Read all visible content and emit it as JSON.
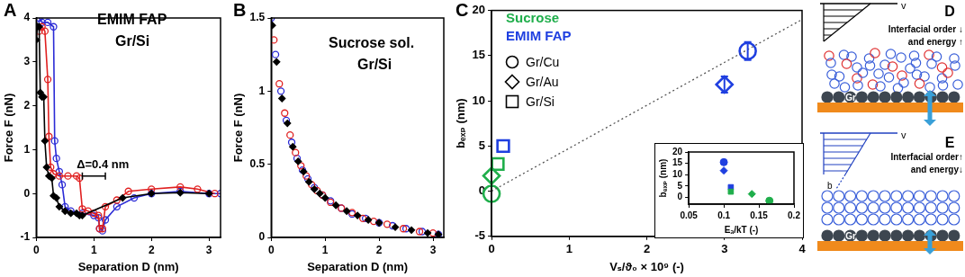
{
  "chart_data": [
    {
      "panel": "A",
      "type": "line",
      "labels": [
        "EMIM FAP",
        "Gr/Si"
      ],
      "annotations": [
        {
          "text": "Δ=0.4 nm",
          "x": [
            0.8,
            1.2
          ],
          "y": 0.4
        }
      ],
      "xlabel": "Separation D (nm)",
      "ylabel": "Force F (nN)",
      "xlim": [
        0,
        3.2
      ],
      "xticks": [
        0,
        1,
        2,
        3
      ],
      "ylim": [
        -1,
        4
      ],
      "yticks": [
        -1,
        0,
        1,
        2,
        3,
        4
      ],
      "grid": false,
      "series": [
        {
          "color": "#000000",
          "marker": "diamond",
          "line_style": "solid",
          "x": [
            0,
            0.02,
            0.05,
            0.07,
            0.1,
            0.13,
            0.15,
            0.18,
            0.22,
            0.27,
            0.3,
            0.35,
            0.4,
            0.5,
            0.6,
            0.7,
            0.75,
            0.8,
            1.5,
            2.0,
            2.5,
            3.0
          ],
          "values": [
            3.5,
            3.8,
            3.8,
            2.3,
            2.2,
            2.2,
            1.2,
            0.6,
            0.4,
            0.35,
            -0.05,
            -0.1,
            -0.3,
            -0.4,
            -0.45,
            -0.45,
            -0.5,
            -0.5,
            -0.1,
            0.0,
            0.02,
            0.0
          ]
        },
        {
          "color": "#e02020",
          "marker": "circle",
          "line_style": "solid",
          "x": [
            0.05,
            0.1,
            0.15,
            0.2,
            0.22,
            0.25,
            0.3,
            0.4,
            0.55,
            0.7,
            0.75,
            0.8,
            0.9,
            1.0,
            1.08,
            1.1,
            1.15,
            1.2,
            1.4,
            1.6,
            2.0,
            2.5,
            2.8,
            3.1
          ],
          "values": [
            3.7,
            3.8,
            3.7,
            2.6,
            1.3,
            0.6,
            0.45,
            0.4,
            0.4,
            0.4,
            0.35,
            -0.35,
            -0.4,
            -0.45,
            -0.5,
            -0.8,
            -0.8,
            -0.3,
            -0.15,
            0.05,
            0.1,
            0.15,
            0.1,
            0.0
          ]
        },
        {
          "color": "#2b2bd6",
          "marker": "circle",
          "line_style": "solid",
          "x": [
            0.05,
            0.1,
            0.2,
            0.3,
            0.32,
            0.35,
            0.4,
            0.45,
            0.5,
            0.6,
            0.8,
            1.0,
            1.08,
            1.1,
            1.15,
            1.2,
            1.4,
            1.7,
            2.0,
            2.5,
            3.0,
            3.2
          ],
          "values": [
            4.0,
            3.9,
            3.9,
            3.8,
            1.2,
            0.8,
            0.5,
            0.2,
            -0.3,
            -0.4,
            -0.45,
            -0.5,
            -0.55,
            -0.8,
            -0.85,
            -0.6,
            -0.3,
            -0.1,
            0.0,
            0.05,
            0.0,
            0.0
          ]
        }
      ]
    },
    {
      "panel": "B",
      "type": "scatter",
      "labels": [
        "Sucrose sol.",
        "Gr/Si"
      ],
      "xlabel": "Separation D (nm)",
      "ylabel": "Force F (nN)",
      "xlim": [
        0,
        3.2
      ],
      "xticks": [
        0,
        1,
        2,
        3
      ],
      "ylim": [
        0,
        1.5
      ],
      "yticks": [
        0,
        0.5,
        1,
        1.5
      ],
      "grid": false,
      "series": [
        {
          "color": "#000000",
          "marker": "diamond",
          "x": [
            0.02,
            0.1,
            0.2,
            0.3,
            0.4,
            0.5,
            0.6,
            0.7,
            0.8,
            0.9,
            1.0,
            1.2,
            1.4,
            1.6,
            1.8,
            2.0,
            2.3,
            2.6,
            2.9,
            3.1
          ],
          "values": [
            1.45,
            1.2,
            0.95,
            0.78,
            0.62,
            0.52,
            0.45,
            0.38,
            0.33,
            0.3,
            0.27,
            0.22,
            0.18,
            0.15,
            0.12,
            0.1,
            0.07,
            0.05,
            0.03,
            0.02
          ]
        },
        {
          "color": "#e02020",
          "marker": "circle",
          "x": [
            0.05,
            0.15,
            0.25,
            0.35,
            0.45,
            0.55,
            0.65,
            0.75,
            0.85,
            0.95,
            1.1,
            1.3,
            1.5,
            1.7,
            1.9,
            2.15,
            2.45,
            2.75,
            3.0
          ],
          "values": [
            1.35,
            1.05,
            0.85,
            0.7,
            0.58,
            0.49,
            0.42,
            0.36,
            0.32,
            0.29,
            0.24,
            0.2,
            0.17,
            0.13,
            0.11,
            0.09,
            0.06,
            0.04,
            0.03
          ]
        },
        {
          "color": "#2b2bd6",
          "marker": "circle",
          "x": [
            0.0,
            0.08,
            0.18,
            0.28,
            0.38,
            0.48,
            0.58,
            0.68,
            0.8,
            0.95,
            1.1,
            1.3,
            1.5,
            1.75,
            2.0,
            2.25,
            2.5,
            2.8,
            3.1
          ],
          "values": [
            1.5,
            1.25,
            1.0,
            0.8,
            0.65,
            0.54,
            0.46,
            0.4,
            0.34,
            0.29,
            0.25,
            0.2,
            0.16,
            0.13,
            0.1,
            0.08,
            0.06,
            0.04,
            0.02
          ]
        }
      ]
    },
    {
      "panel": "C",
      "type": "scatter",
      "xlabel": "Vₛ/ϑ₀ × 10⁹ (-)",
      "ylabel": "bₑₓₚ (nm)",
      "xlim": [
        0,
        4
      ],
      "xticks": [
        0,
        1,
        2,
        3,
        4
      ],
      "ylim": [
        -5,
        20
      ],
      "yticks": [
        -5,
        0,
        5,
        10,
        15,
        20
      ],
      "grid": false,
      "substrate_legend": [
        {
          "name": "Gr/Cu",
          "marker": "circle"
        },
        {
          "name": "Gr/Au",
          "marker": "diamond"
        },
        {
          "name": "Gr/Si",
          "marker": "square"
        }
      ],
      "fit_line": {
        "x": [
          0,
          4
        ],
        "values": [
          0,
          19
        ],
        "line_style": "dotted"
      },
      "series": [
        {
          "name": "Sucrose",
          "color": "#1fae4b",
          "marker": "open",
          "x": [
            0,
            0,
            0.08
          ],
          "values": [
            -0.3,
            1.7,
            3.0
          ],
          "substrates": [
            "Gr/Cu",
            "Gr/Au",
            "Gr/Si"
          ]
        },
        {
          "name": "EMIM FAP",
          "color": "#1f3fe0",
          "marker": "open",
          "x": [
            3.3,
            3.0,
            0.15
          ],
          "values": [
            15.5,
            11.8,
            5.0
          ],
          "substrates": [
            "Gr/Cu",
            "Gr/Au",
            "Gr/Si"
          ],
          "errors": [
            1.0,
            0.9,
            null
          ]
        }
      ],
      "inset": {
        "type": "scatter",
        "xlabel": "Eₐ/kT (-)",
        "ylabel": "bₑₓₚ (nm)",
        "xlim": [
          0.05,
          0.2
        ],
        "xticks": [
          0.05,
          0.1,
          0.15,
          0.2
        ],
        "ylim": [
          -3,
          20
        ],
        "yticks": [
          0,
          5,
          10,
          15,
          20
        ],
        "grid": false,
        "series": [
          {
            "name": "Sucrose",
            "color": "#1fae4b",
            "marker": "filled",
            "x": [
              0.165,
              0.14,
              0.11
            ],
            "values": [
              -1.5,
              1.5,
              2.5
            ],
            "substrates": [
              "Gr/Cu",
              "Gr/Au",
              "Gr/Si"
            ]
          },
          {
            "name": "EMIM FAP",
            "color": "#1f3fe0",
            "marker": "filled",
            "x": [
              0.1,
              0.1,
              0.11
            ],
            "values": [
              15.5,
              11.8,
              4.5
            ],
            "substrates": [
              "Gr/Cu",
              "Gr/Au",
              "Gr/Si"
            ]
          }
        ]
      }
    }
  ],
  "diagrams": [
    {
      "panel": "D",
      "text": [
        "Interfacial order ↓",
        "and energy ↑"
      ],
      "labels": {
        "velocity": "v",
        "graphene": "Gr"
      }
    },
    {
      "panel": "E",
      "text": [
        "Interfacial order↑",
        "and energy↓"
      ],
      "labels": {
        "velocity": "v",
        "slip": "b",
        "graphene": "Gr"
      }
    }
  ]
}
